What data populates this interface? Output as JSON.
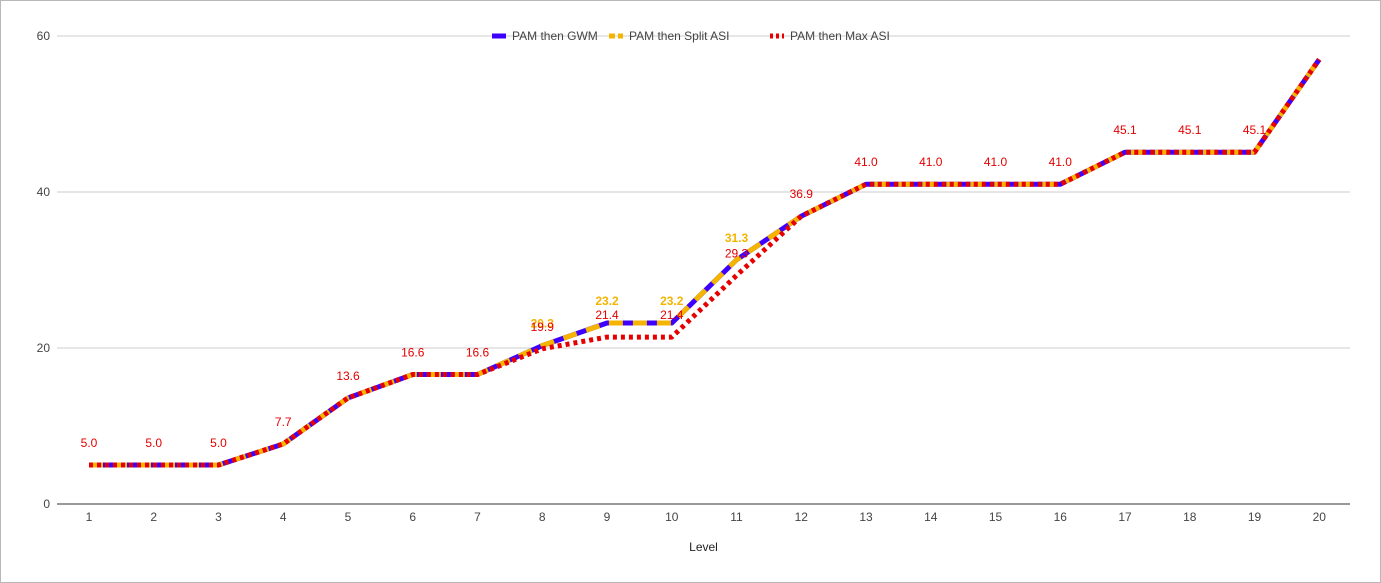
{
  "chart_data": {
    "type": "line",
    "title": "",
    "xlabel": "Level",
    "ylabel": "",
    "ylim": [
      0,
      60
    ],
    "yticks": [
      "0",
      "20",
      "40",
      "60"
    ],
    "grid": true,
    "legend_position": "top",
    "categories": [
      "1",
      "2",
      "3",
      "4",
      "5",
      "6",
      "7",
      "8",
      "9",
      "10",
      "11",
      "12",
      "13",
      "14",
      "15",
      "16",
      "17",
      "18",
      "19",
      "20"
    ],
    "series": [
      {
        "name": "PAM then GWM",
        "color": "#3d00ff",
        "style": "solid",
        "values": [
          5.0,
          5.0,
          5.0,
          7.7,
          13.6,
          16.6,
          16.6,
          20.3,
          23.2,
          23.2,
          31.3,
          36.9,
          41.0,
          41.0,
          41.0,
          41.0,
          45.1,
          45.1,
          45.1,
          57.0
        ]
      },
      {
        "name": "PAM then Split ASI",
        "color": "#f4b400",
        "style": "dashed",
        "values": [
          5.0,
          5.0,
          5.0,
          7.7,
          13.6,
          16.6,
          16.6,
          20.3,
          23.2,
          23.2,
          31.3,
          36.9,
          41.0,
          41.0,
          41.0,
          41.0,
          45.1,
          45.1,
          45.1,
          57.0
        ],
        "data_labels": [
          {
            "index": 7,
            "text": "20.3"
          },
          {
            "index": 8,
            "text": "23.2"
          },
          {
            "index": 9,
            "text": "23.2"
          },
          {
            "index": 10,
            "text": "31.3"
          }
        ]
      },
      {
        "name": "PAM then Max ASI",
        "color": "#e60000",
        "style": "dotted",
        "values": [
          5.0,
          5.0,
          5.0,
          7.7,
          13.6,
          16.6,
          16.6,
          19.9,
          21.4,
          21.4,
          29.3,
          36.9,
          41.0,
          41.0,
          41.0,
          41.0,
          45.1,
          45.1,
          45.1,
          57.0
        ],
        "data_labels": [
          {
            "index": 0,
            "text": "5.0"
          },
          {
            "index": 1,
            "text": "5.0"
          },
          {
            "index": 2,
            "text": "5.0"
          },
          {
            "index": 3,
            "text": "7.7"
          },
          {
            "index": 4,
            "text": "13.6"
          },
          {
            "index": 5,
            "text": "16.6"
          },
          {
            "index": 6,
            "text": "16.6"
          },
          {
            "index": 7,
            "text": "19.9"
          },
          {
            "index": 8,
            "text": "21.4"
          },
          {
            "index": 9,
            "text": "21.4"
          },
          {
            "index": 10,
            "text": "29.3"
          },
          {
            "index": 11,
            "text": "36.9"
          },
          {
            "index": 12,
            "text": "41.0"
          },
          {
            "index": 13,
            "text": "41.0"
          },
          {
            "index": 14,
            "text": "41.0"
          },
          {
            "index": 15,
            "text": "41.0"
          },
          {
            "index": 16,
            "text": "45.1"
          },
          {
            "index": 17,
            "text": "45.1"
          },
          {
            "index": 18,
            "text": "45.1"
          }
        ]
      }
    ]
  }
}
